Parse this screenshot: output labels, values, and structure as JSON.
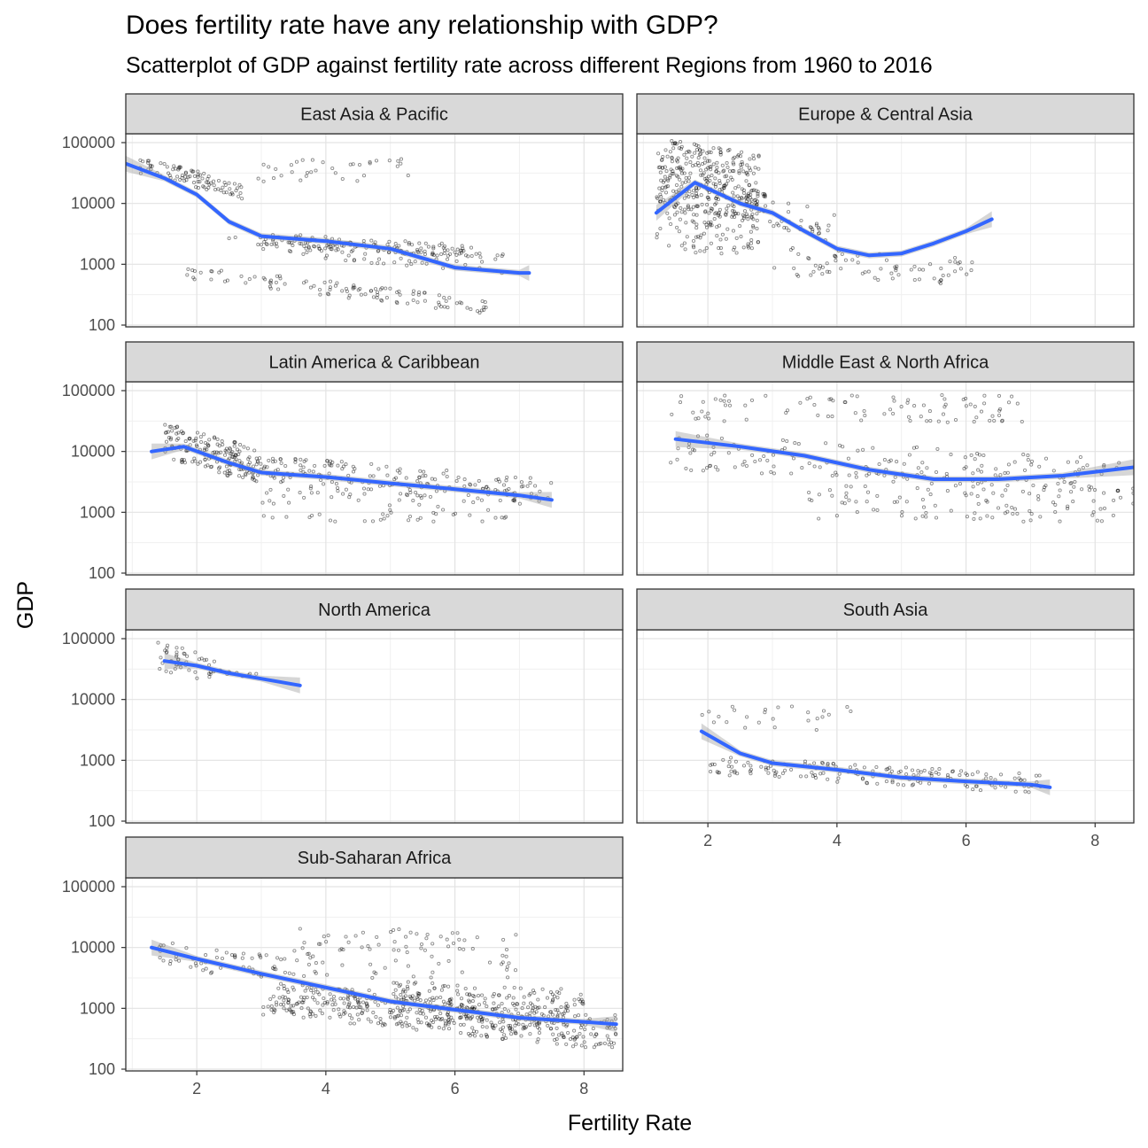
{
  "title": "Does fertility rate have any relationship with GDP?",
  "subtitle": "Scatterplot of GDP against fertility rate across different Regions from 1960 to 2016",
  "chart_data": {
    "type": "scatter",
    "scale_y": "log10",
    "xlabel": "Fertility Rate",
    "ylabel": "GDP",
    "xlim": [
      0.9,
      8.6
    ],
    "ylim": [
      100,
      100000
    ],
    "x_ticks": [
      2,
      4,
      6,
      8
    ],
    "x_tick_labels": [
      "2",
      "4",
      "6",
      "8"
    ],
    "y_ticks": [
      100,
      1000,
      10000,
      100000
    ],
    "y_tick_labels": [
      "100",
      "1000",
      "10000",
      "100000"
    ],
    "grid": true,
    "point_color": "#000000",
    "smooth_color": "#3366FF",
    "band_color": "#999999",
    "strip_fill": "#D9D9D9",
    "panels": [
      {
        "name": "East Asia & Pacific",
        "smooth": [
          [
            0.9,
            45000
          ],
          [
            1.5,
            26000
          ],
          [
            2.0,
            14000
          ],
          [
            2.5,
            5000
          ],
          [
            3.0,
            2900
          ],
          [
            4.0,
            2400
          ],
          [
            5.0,
            1800
          ],
          [
            6.0,
            880
          ],
          [
            7.0,
            720
          ],
          [
            7.15,
            720
          ]
        ],
        "clusters": [
          {
            "x": [
              1.1,
              2.7
            ],
            "y": [
              12000,
              60000
            ],
            "n": 90,
            "corr": -0.6
          },
          {
            "x": [
              2.5,
              6.3
            ],
            "y": [
              1300,
              3500
            ],
            "n": 120,
            "corr": -0.5
          },
          {
            "x": [
              1.8,
              6.5
            ],
            "y": [
              150,
              1000
            ],
            "n": 110,
            "corr": -0.7
          },
          {
            "x": [
              2.8,
              5.4
            ],
            "y": [
              20000,
              60000
            ],
            "n": 35,
            "corr": 0.2
          },
          {
            "x": [
              3.0,
              6.8
            ],
            "y": [
              700,
              3000
            ],
            "n": 80,
            "corr": -0.5
          }
        ]
      },
      {
        "name": "Europe & Central Asia",
        "smooth": [
          [
            1.2,
            7000
          ],
          [
            1.8,
            22000
          ],
          [
            2.5,
            10000
          ],
          [
            3.0,
            7000
          ],
          [
            3.5,
            3500
          ],
          [
            4.0,
            1800
          ],
          [
            4.5,
            1400
          ],
          [
            5.0,
            1500
          ],
          [
            5.5,
            2200
          ],
          [
            6.0,
            3500
          ],
          [
            6.4,
            5500
          ]
        ],
        "clusters": [
          {
            "x": [
              1.2,
              2.8
            ],
            "y": [
              5000,
              120000
            ],
            "n": 320,
            "corr": -0.2
          },
          {
            "x": [
              1.2,
              2.8
            ],
            "y": [
              1500,
              8000
            ],
            "n": 90,
            "corr": 0.0
          },
          {
            "x": [
              2.5,
              4.0
            ],
            "y": [
              2000,
              20000
            ],
            "n": 60,
            "corr": -0.5
          },
          {
            "x": [
              3.0,
              6.2
            ],
            "y": [
              400,
              2000
            ],
            "n": 70,
            "corr": -0.3
          }
        ]
      },
      {
        "name": "Latin America & Caribbean",
        "smooth": [
          [
            1.3,
            10000
          ],
          [
            1.8,
            12000
          ],
          [
            2.5,
            6500
          ],
          [
            3.0,
            4500
          ],
          [
            4.0,
            3800
          ],
          [
            5.0,
            3000
          ],
          [
            6.0,
            2400
          ],
          [
            7.0,
            1900
          ],
          [
            7.5,
            1600
          ]
        ],
        "clusters": [
          {
            "x": [
              1.5,
              2.9
            ],
            "y": [
              3000,
              30000
            ],
            "n": 150,
            "corr": -0.4
          },
          {
            "x": [
              2.5,
              7.5
            ],
            "y": [
              1200,
              10000
            ],
            "n": 200,
            "corr": -0.5
          },
          {
            "x": [
              3.0,
              7.0
            ],
            "y": [
              700,
              2500
            ],
            "n": 70,
            "corr": 0.0
          }
        ]
      },
      {
        "name": "Middle East & North Africa",
        "smooth": [
          [
            1.5,
            16000
          ],
          [
            2.5,
            12000
          ],
          [
            3.5,
            8500
          ],
          [
            4.5,
            5000
          ],
          [
            5.5,
            3500
          ],
          [
            6.5,
            3500
          ],
          [
            7.5,
            4000
          ],
          [
            8.6,
            5500
          ]
        ],
        "clusters": [
          {
            "x": [
              1.4,
              7.2
            ],
            "y": [
              30000,
              90000
            ],
            "n": 90,
            "corr": 0.0
          },
          {
            "x": [
              1.4,
              8.4
            ],
            "y": [
              2000,
              20000
            ],
            "n": 170,
            "corr": -0.4
          },
          {
            "x": [
              3.5,
              8.6
            ],
            "y": [
              700,
              3000
            ],
            "n": 110,
            "corr": 0.0
          }
        ]
      },
      {
        "name": "North America",
        "smooth": [
          [
            1.5,
            43000
          ],
          [
            2.0,
            36000
          ],
          [
            2.5,
            27000
          ],
          [
            3.0,
            22000
          ],
          [
            3.6,
            17000
          ]
        ],
        "clusters": [
          {
            "x": [
              1.4,
              2.3
            ],
            "y": [
              18000,
              90000
            ],
            "n": 45,
            "corr": -0.3
          },
          {
            "x": [
              2.2,
              3.0
            ],
            "y": [
              22000,
              32000
            ],
            "n": 10,
            "corr": -0.5
          }
        ]
      },
      {
        "name": "South Asia",
        "smooth": [
          [
            1.9,
            3000
          ],
          [
            2.5,
            1300
          ],
          [
            3.0,
            900
          ],
          [
            4.0,
            700
          ],
          [
            5.0,
            520
          ],
          [
            6.0,
            450
          ],
          [
            7.0,
            400
          ],
          [
            7.3,
            360
          ]
        ],
        "clusters": [
          {
            "x": [
              1.9,
              4.4
            ],
            "y": [
              3000,
              8000
            ],
            "n": 25,
            "corr": 0.0
          },
          {
            "x": [
              2.0,
              7.2
            ],
            "y": [
              280,
              1200
            ],
            "n": 170,
            "corr": -0.5
          }
        ]
      },
      {
        "name": "Sub-Saharan Africa",
        "smooth": [
          [
            1.3,
            10000
          ],
          [
            2.0,
            6500
          ],
          [
            3.0,
            3700
          ],
          [
            4.0,
            2200
          ],
          [
            5.0,
            1300
          ],
          [
            6.0,
            950
          ],
          [
            7.0,
            700
          ],
          [
            8.0,
            600
          ],
          [
            8.5,
            550
          ]
        ],
        "clusters": [
          {
            "x": [
              1.4,
              3.5
            ],
            "y": [
              2500,
              13000
            ],
            "n": 60,
            "corr": -0.4
          },
          {
            "x": [
              3.0,
              8.5
            ],
            "y": [
              200,
              3000
            ],
            "n": 420,
            "corr": -0.5
          },
          {
            "x": [
              3.5,
              7.0
            ],
            "y": [
              3000,
              22000
            ],
            "n": 90,
            "corr": 0.0
          },
          {
            "x": [
              5.0,
              8.0
            ],
            "y": [
              400,
              3000
            ],
            "n": 200,
            "corr": -0.2
          }
        ]
      }
    ]
  }
}
